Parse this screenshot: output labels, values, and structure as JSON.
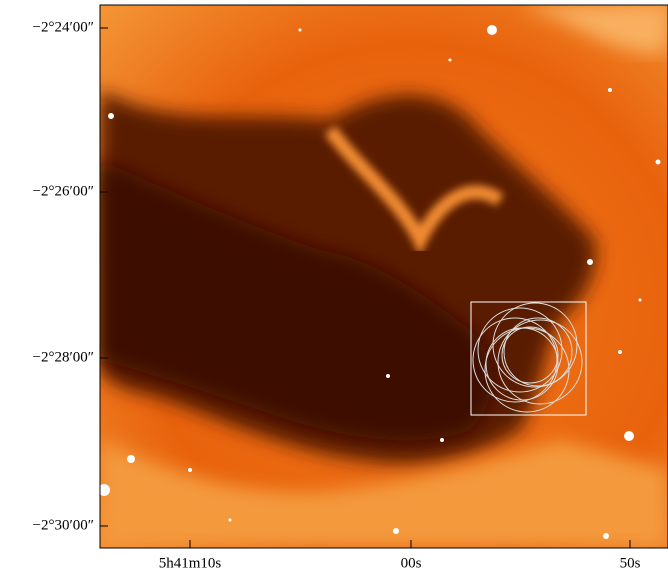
{
  "image": {
    "y_axis_labels": [
      "−2°24′00″",
      "−2°26′00″",
      "−2°28′00″",
      "−2°30′00″"
    ],
    "x_axis_labels": [
      "5h41m10s",
      "00s",
      "50s"
    ]
  }
}
